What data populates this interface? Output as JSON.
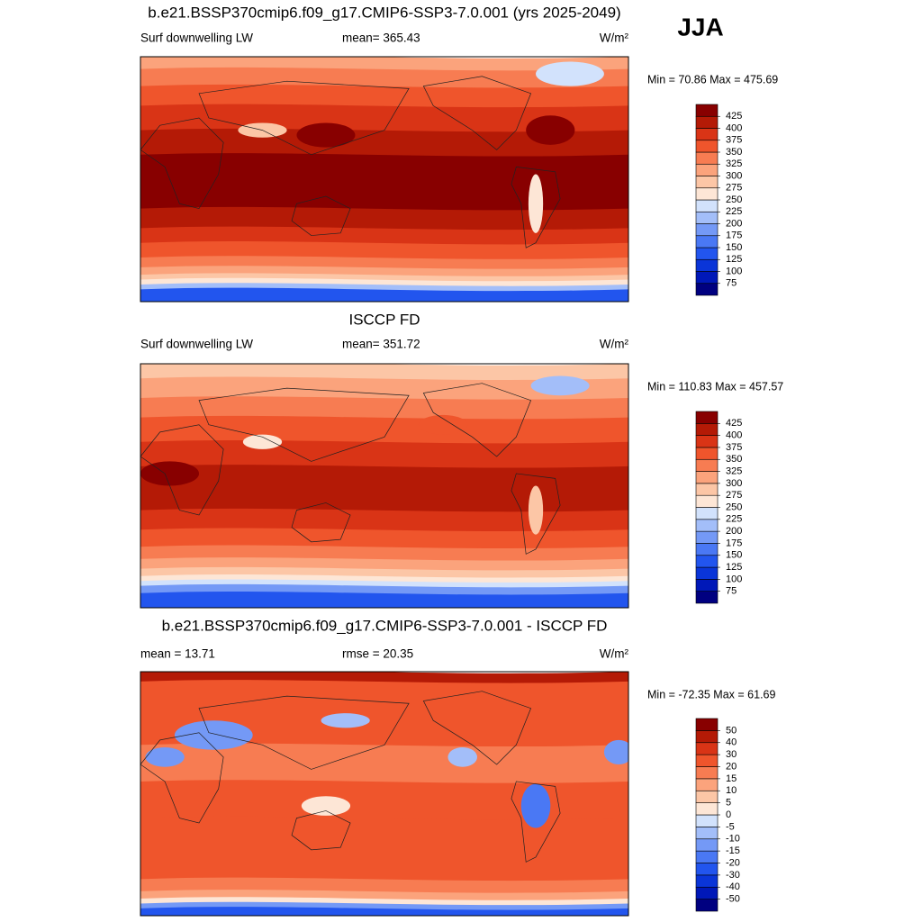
{
  "header": {
    "title": "b.e21.BSSP370cmip6.f09_g17.CMIP6-SSP3-7.0.001 (yrs 2025-2049)",
    "season": "JJA"
  },
  "chart_data": [
    {
      "type": "map",
      "left_label": "Surf downwelling LW",
      "center_label": "mean= 365.43",
      "right_label": "W/m²",
      "minmax": "Min =  70.86 Max = 475.69",
      "levels": [
        75,
        100,
        125,
        150,
        175,
        200,
        225,
        250,
        275,
        300,
        325,
        350,
        375,
        400,
        425
      ],
      "colors": [
        "#000080",
        "#0018b8",
        "#0a35d8",
        "#2255ee",
        "#4a78f4",
        "#7499f6",
        "#a3bef9",
        "#d2e2fc",
        "#fde6d6",
        "#fcc6a6",
        "#fba37c",
        "#f77c52",
        "#ef552c",
        "#d93416",
        "#b41a06",
        "#880000"
      ]
    },
    {
      "type": "map",
      "title": "ISCCP FD",
      "left_label": "Surf downwelling LW",
      "center_label": "mean= 351.72",
      "right_label": "W/m²",
      "minmax": "Min = 110.83 Max = 457.57",
      "levels": [
        75,
        100,
        125,
        150,
        175,
        200,
        225,
        250,
        275,
        300,
        325,
        350,
        375,
        400,
        425
      ],
      "colors": [
        "#000080",
        "#0018b8",
        "#0a35d8",
        "#2255ee",
        "#4a78f4",
        "#7499f6",
        "#a3bef9",
        "#d2e2fc",
        "#fde6d6",
        "#fcc6a6",
        "#fba37c",
        "#f77c52",
        "#ef552c",
        "#d93416",
        "#b41a06",
        "#880000"
      ]
    },
    {
      "type": "map",
      "title": "b.e21.BSSP370cmip6.f09_g17.CMIP6-SSP3-7.0.001 - ISCCP FD",
      "left_label": "mean =  13.71",
      "center_label": "rmse =  20.35",
      "right_label": "W/m²",
      "minmax": "Min = -72.35 Max =  61.69",
      "levels": [
        -50,
        -40,
        -30,
        -20,
        -15,
        -10,
        -5,
        0,
        5,
        10,
        15,
        20,
        30,
        40,
        50
      ],
      "colors": [
        "#000080",
        "#0018b8",
        "#0a35d8",
        "#2255ee",
        "#4a78f4",
        "#7499f6",
        "#a3bef9",
        "#d2e2fc",
        "#fde6d6",
        "#fcc6a6",
        "#fba37c",
        "#f77c52",
        "#ef552c",
        "#d93416",
        "#b41a06",
        "#880000"
      ]
    }
  ]
}
